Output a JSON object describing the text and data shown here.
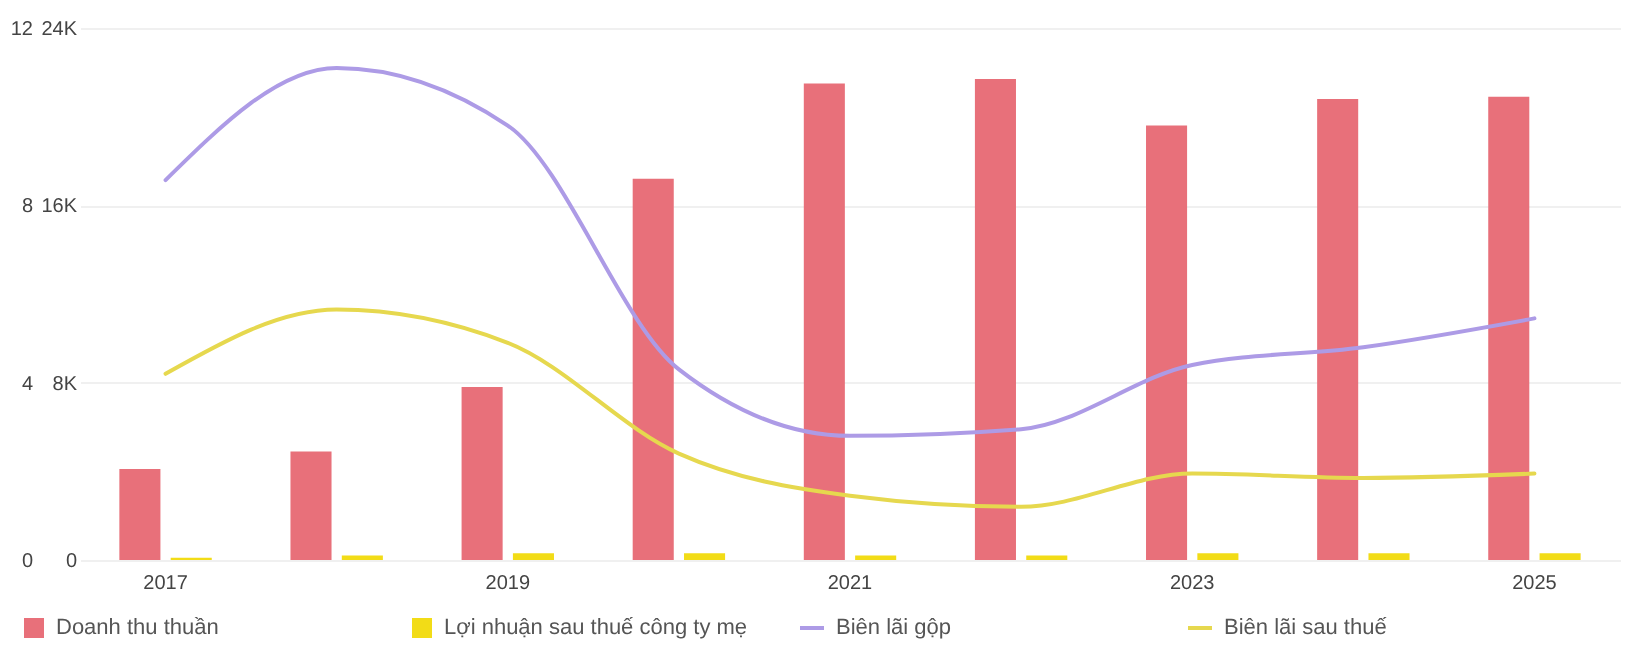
{
  "chart_data": {
    "type": "bar",
    "categories": [
      "2017",
      null,
      "2019",
      null,
      "2021",
      null,
      "2023",
      null,
      "2025"
    ],
    "series": [
      {
        "name": "Doanh thu thuần",
        "color": "#e8707a",
        "values": [
          4100,
          4900,
          7800,
          17200,
          21500,
          21700,
          19600,
          20800,
          20900
        ]
      },
      {
        "name": "Lợi nhuận sau thuế công ty mẹ",
        "color": "#f2dc17",
        "values": [
          100,
          200,
          300,
          300,
          200,
          200,
          300,
          300,
          300
        ]
      },
      {
        "name": "Biên lãi gộp",
        "type": "line",
        "axis": "y2",
        "color": "#ad9be6",
        "values": [
          8.57,
          11.1,
          9.8,
          4.3,
          2.8,
          2.95,
          4.4,
          4.8,
          5.45
        ]
      },
      {
        "name": "Biên lãi sau thuế",
        "type": "line",
        "axis": "y2",
        "color": "#e6d84e",
        "values": [
          4.2,
          5.65,
          4.9,
          2.4,
          1.45,
          1.2,
          1.95,
          1.85,
          1.95
        ]
      }
    ],
    "ylim": [
      0,
      24000
    ],
    "yticks": [
      0,
      {
        "value": 8000,
        "label": "8K"
      },
      {
        "value": 16000,
        "label": "16K"
      },
      {
        "value": 24000,
        "label": "24K"
      }
    ],
    "y2lim": [
      0,
      12
    ],
    "y2ticks": [
      0,
      4,
      8,
      12
    ],
    "grid": "y",
    "legend": "bottom"
  }
}
